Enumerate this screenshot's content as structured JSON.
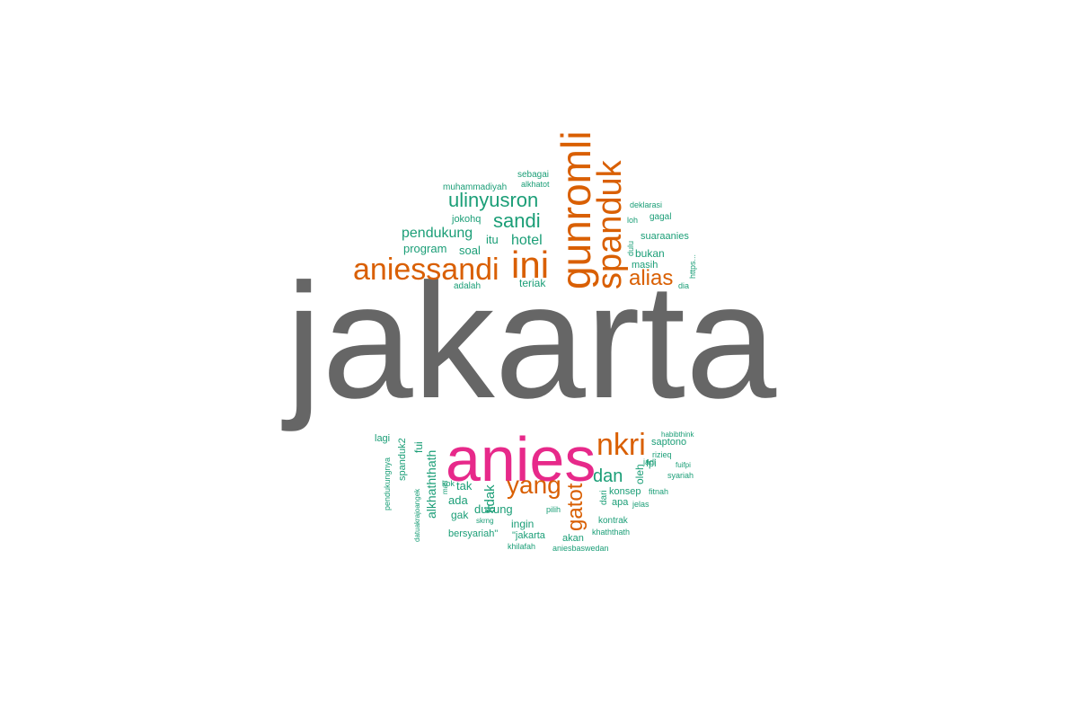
{
  "colors": {
    "gray": "#666666",
    "orange": "#d95f02",
    "teal": "#1b9e77",
    "pink": "#e7298a",
    "background": "#ffffff"
  },
  "words": [
    {
      "text": "jakarta",
      "color": "gray"
    },
    {
      "text": "anies",
      "color": "pink"
    },
    {
      "text": "aniessandi",
      "color": "orange"
    },
    {
      "text": "ini",
      "color": "orange"
    },
    {
      "text": "gunromli",
      "color": "orange"
    },
    {
      "text": "spanduk",
      "color": "orange"
    },
    {
      "text": "nkri",
      "color": "orange"
    },
    {
      "text": "yang",
      "color": "orange"
    },
    {
      "text": "alias",
      "color": "orange"
    },
    {
      "text": "gatot",
      "color": "orange"
    },
    {
      "text": "ulinyusron",
      "color": "teal"
    },
    {
      "text": "sandi",
      "color": "teal"
    },
    {
      "text": "pendukung",
      "color": "teal"
    },
    {
      "text": "hotel",
      "color": "teal"
    },
    {
      "text": "program",
      "color": "teal"
    },
    {
      "text": "soal",
      "color": "teal"
    },
    {
      "text": "itu",
      "color": "teal"
    },
    {
      "text": "jokohq",
      "color": "teal"
    },
    {
      "text": "muhammadiyah",
      "color": "teal"
    },
    {
      "text": "sebagai",
      "color": "teal"
    },
    {
      "text": "alkhatot",
      "color": "teal"
    },
    {
      "text": "teriak",
      "color": "teal"
    },
    {
      "text": "adalah",
      "color": "teal"
    },
    {
      "text": "deklarasi",
      "color": "teal"
    },
    {
      "text": "loh",
      "color": "teal"
    },
    {
      "text": "gagal",
      "color": "teal"
    },
    {
      "text": "dulu",
      "color": "teal"
    },
    {
      "text": "suaraanies",
      "color": "teal"
    },
    {
      "text": "bukan",
      "color": "teal"
    },
    {
      "text": "masih",
      "color": "teal"
    },
    {
      "text": "https...",
      "color": "teal"
    },
    {
      "text": "dia",
      "color": "teal"
    },
    {
      "text": "dan",
      "color": "teal"
    },
    {
      "text": "dukung",
      "color": "teal"
    },
    {
      "text": "tidak",
      "color": "teal"
    },
    {
      "text": "alkhaththath",
      "color": "teal"
    },
    {
      "text": "lagi",
      "color": "teal"
    },
    {
      "text": "spanduk2",
      "color": "teal"
    },
    {
      "text": "fui",
      "color": "teal"
    },
    {
      "text": "pendukungnya",
      "color": "teal"
    },
    {
      "text": "datuakrajoangek",
      "color": "teal"
    },
    {
      "text": "mau",
      "color": "teal"
    },
    {
      "text": "kok",
      "color": "teal"
    },
    {
      "text": "tak",
      "color": "teal"
    },
    {
      "text": "ada",
      "color": "teal"
    },
    {
      "text": "gak",
      "color": "teal"
    },
    {
      "text": "skrng",
      "color": "teal"
    },
    {
      "text": "bersyariah\"",
      "color": "teal"
    },
    {
      "text": "ingin",
      "color": "teal"
    },
    {
      "text": "\"jakarta",
      "color": "teal"
    },
    {
      "text": "khilafah",
      "color": "teal"
    },
    {
      "text": "pilih",
      "color": "teal"
    },
    {
      "text": "akan",
      "color": "teal"
    },
    {
      "text": "aniesbaswedan",
      "color": "teal"
    },
    {
      "text": "dari",
      "color": "teal"
    },
    {
      "text": "oleh",
      "color": "teal"
    },
    {
      "text": "jadi",
      "color": "teal"
    },
    {
      "text": "fpi",
      "color": "teal"
    },
    {
      "text": "konsep",
      "color": "teal"
    },
    {
      "text": "apa",
      "color": "teal"
    },
    {
      "text": "jelas",
      "color": "teal"
    },
    {
      "text": "fitnah",
      "color": "teal"
    },
    {
      "text": "kontrak",
      "color": "teal"
    },
    {
      "text": "khaththath",
      "color": "teal"
    },
    {
      "text": "habibthink",
      "color": "teal"
    },
    {
      "text": "saptono",
      "color": "teal"
    },
    {
      "text": "rizieq",
      "color": "teal"
    },
    {
      "text": "fuifpi",
      "color": "teal"
    },
    {
      "text": "syariah",
      "color": "teal"
    }
  ]
}
